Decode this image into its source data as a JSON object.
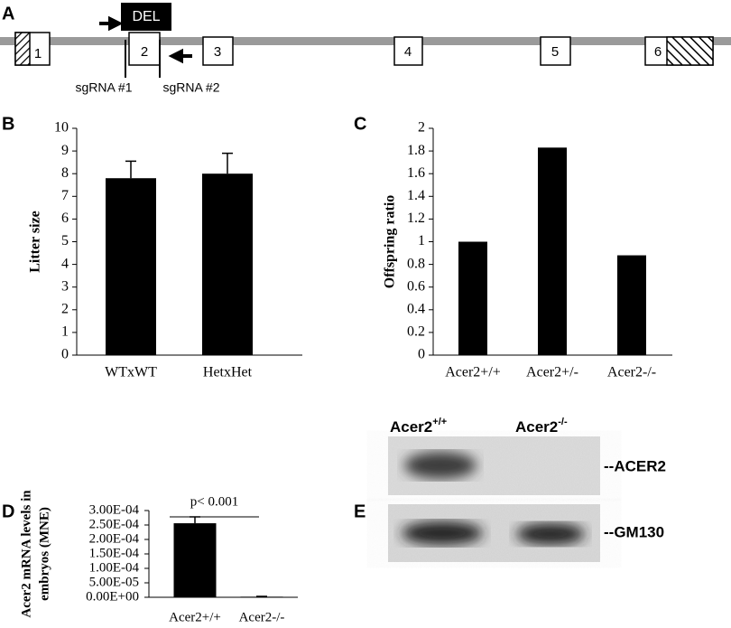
{
  "panel_labels": [
    "A",
    "B",
    "C",
    "D",
    "E"
  ],
  "gene_diagram": {
    "exons": [
      "1",
      "2",
      "3",
      "4",
      "5",
      "6"
    ],
    "deletion": "DEL",
    "guides": [
      "sgRNA #1",
      "sgRNA #2"
    ]
  },
  "chart_data": [
    {
      "type": "bar",
      "ylabel": [
        "Litter size"
      ],
      "categories": [
        "WTxWT",
        "HetxHet"
      ],
      "values": [
        7.8,
        8.0
      ],
      "errors": [
        0.75,
        0.9
      ],
      "color": "#000000",
      "ylim": [
        0,
        10
      ],
      "yticks": [
        0,
        1,
        2,
        3,
        4,
        5,
        6,
        7,
        8,
        9,
        10
      ]
    },
    {
      "type": "bar",
      "ylabel": [
        "Offspring ratio"
      ],
      "categories": [
        "Acer2+/+",
        "Acer2+/-",
        "Acer2-/-"
      ],
      "values": [
        1.0,
        1.83,
        0.88
      ],
      "color": "#000000",
      "ylim": [
        0,
        2
      ],
      "yticks": [
        0,
        0.2,
        0.4,
        0.6,
        0.8,
        1,
        1.2,
        1.4,
        1.6,
        1.8,
        2
      ]
    },
    {
      "type": "bar",
      "ylabel": [
        "Acer2 mRNA levels in",
        "embryos (MNE)"
      ],
      "categories": [
        "Acer2+/+",
        "Acer2-/-"
      ],
      "values": [
        0.000256,
        2e-06
      ],
      "errors": [
        2.2e-05,
        1e-06
      ],
      "color": "#000000",
      "annotation": "p< 0.001",
      "ylim": [
        0,
        0.0003
      ],
      "yticks": [
        {
          "value": 0,
          "label": "0.00E+00"
        },
        {
          "value": 5e-05,
          "label": "5.00E-05"
        },
        {
          "value": 0.0001,
          "label": "1.00E-04"
        },
        {
          "value": 0.00015,
          "label": "1.50E-04"
        },
        {
          "value": 0.0002,
          "label": "2.00E-04"
        },
        {
          "value": 0.00025,
          "label": "2.50E-04"
        },
        {
          "value": 0.0003,
          "label": "3.00E-04"
        }
      ]
    }
  ],
  "blot": {
    "lanes": [
      {
        "name": "Acer2",
        "sup": "+/+"
      },
      {
        "name": "Acer2",
        "sup": "-/-"
      }
    ],
    "bands": [
      "--ACER2",
      "--GM130"
    ]
  }
}
